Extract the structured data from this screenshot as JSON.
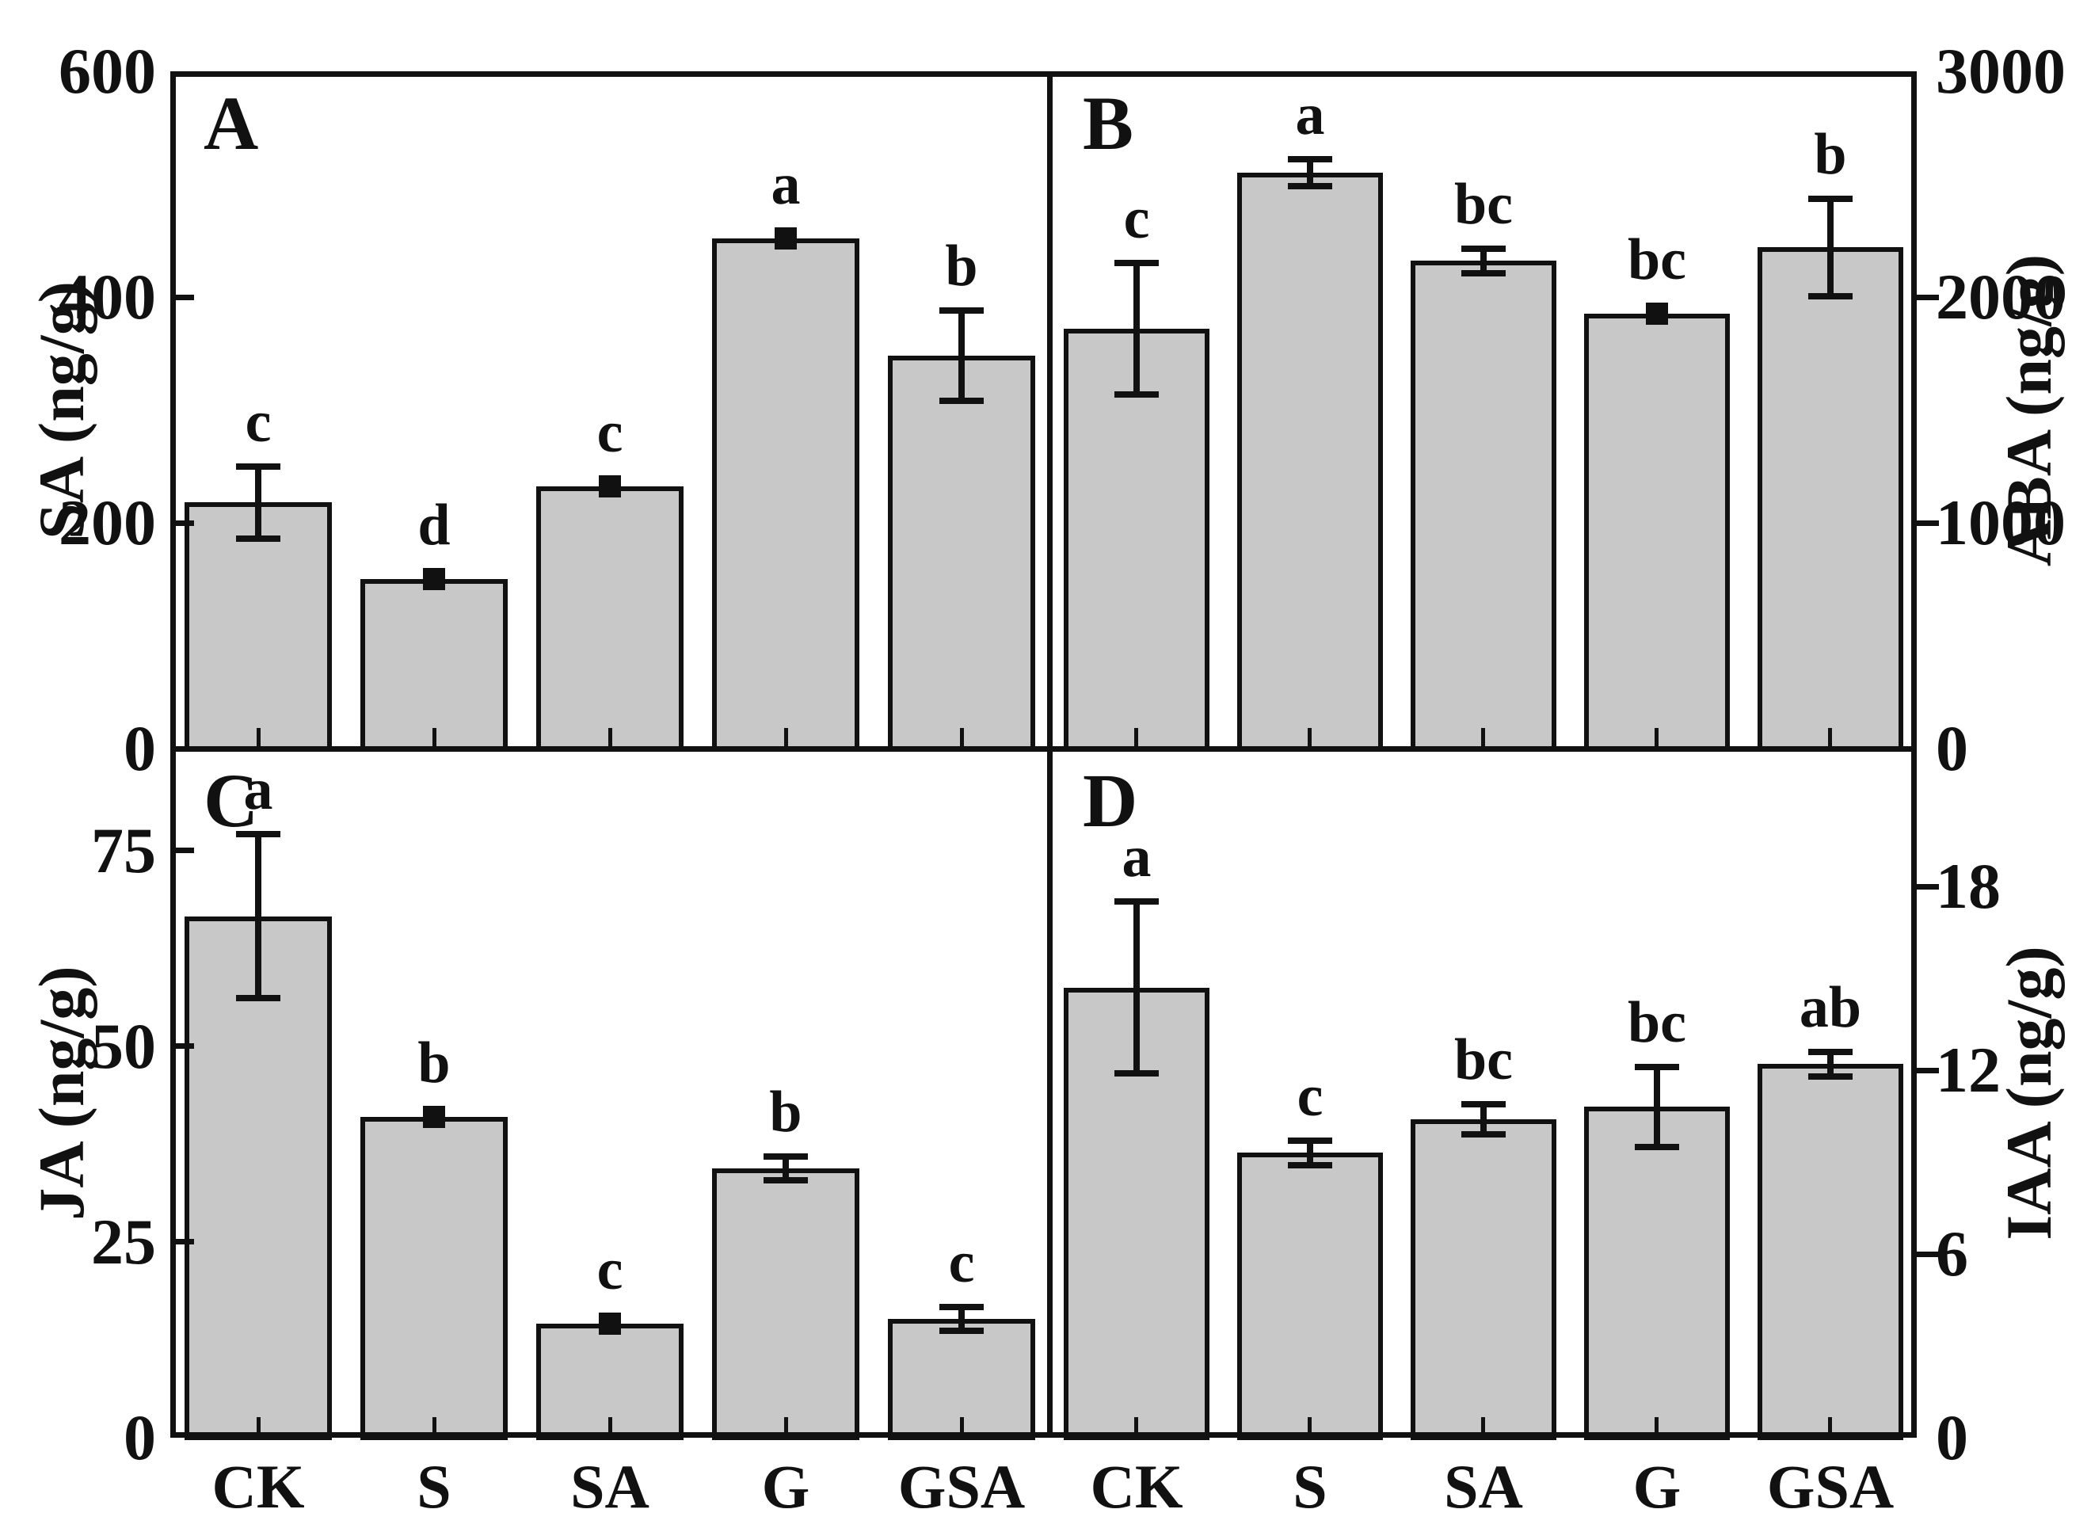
{
  "figure_title": "",
  "x_axis": {
    "categories": [
      "CK",
      "S",
      "SA",
      "G",
      "GSA"
    ]
  },
  "style": {
    "background": "#ffffff",
    "bar_fill": "#c8c8c8",
    "line_color": "#111111"
  },
  "chart_data": [
    {
      "type": "bar",
      "panel_label": "A",
      "position": "top-left",
      "axis_side": "left",
      "ylabel": "SA (ng/g)",
      "ylim": [
        0,
        600
      ],
      "yticks": [
        0,
        200,
        400,
        600
      ],
      "grid": false,
      "legend": "none",
      "categories": [
        "CK",
        "S",
        "SA",
        "G",
        "GSA"
      ],
      "values": [
        218,
        150,
        232,
        452,
        348
      ],
      "errors": [
        32,
        6,
        6,
        8,
        40
      ],
      "sig_letters": [
        "c",
        "d",
        "c",
        "a",
        "b"
      ]
    },
    {
      "type": "bar",
      "panel_label": "B",
      "position": "top-right",
      "axis_side": "right",
      "ylabel": "ABA (ng/g)",
      "ylim": [
        0,
        3000
      ],
      "yticks": [
        0,
        1000,
        2000,
        3000
      ],
      "grid": false,
      "legend": "none",
      "categories": [
        "CK",
        "S",
        "SA",
        "G",
        "GSA"
      ],
      "values": [
        1860,
        2550,
        2160,
        1925,
        2220
      ],
      "errors": [
        290,
        60,
        55,
        20,
        215
      ],
      "sig_letters": [
        "c",
        "a",
        "bc",
        "bc",
        "b"
      ]
    },
    {
      "type": "bar",
      "panel_label": "C",
      "position": "bottom-left",
      "axis_side": "left",
      "ylabel": "JA (ng/g)",
      "ylim": [
        0,
        88
      ],
      "yticks": [
        0,
        25,
        50,
        75
      ],
      "grid": false,
      "legend": "none",
      "categories": [
        "CK",
        "S",
        "SA",
        "G",
        "GSA"
      ],
      "values": [
        66.6,
        41,
        14.6,
        34.4,
        15.2
      ],
      "errors": [
        10.5,
        1.2,
        0.8,
        1.5,
        1.5
      ],
      "sig_letters": [
        "a",
        "b",
        "c",
        "b",
        "c"
      ]
    },
    {
      "type": "bar",
      "panel_label": "D",
      "position": "bottom-right",
      "axis_side": "right",
      "ylabel": "IAA (ng/g)",
      "ylim": [
        0,
        22.5
      ],
      "yticks": [
        0,
        6,
        12,
        18
      ],
      "grid": false,
      "legend": "none",
      "categories": [
        "CK",
        "S",
        "SA",
        "G",
        "GSA"
      ],
      "values": [
        14.7,
        9.3,
        10.4,
        10.8,
        12.2
      ],
      "errors": [
        2.8,
        0.4,
        0.5,
        1.3,
        0.4
      ],
      "sig_letters": [
        "a",
        "c",
        "bc",
        "bc",
        "ab"
      ]
    }
  ]
}
